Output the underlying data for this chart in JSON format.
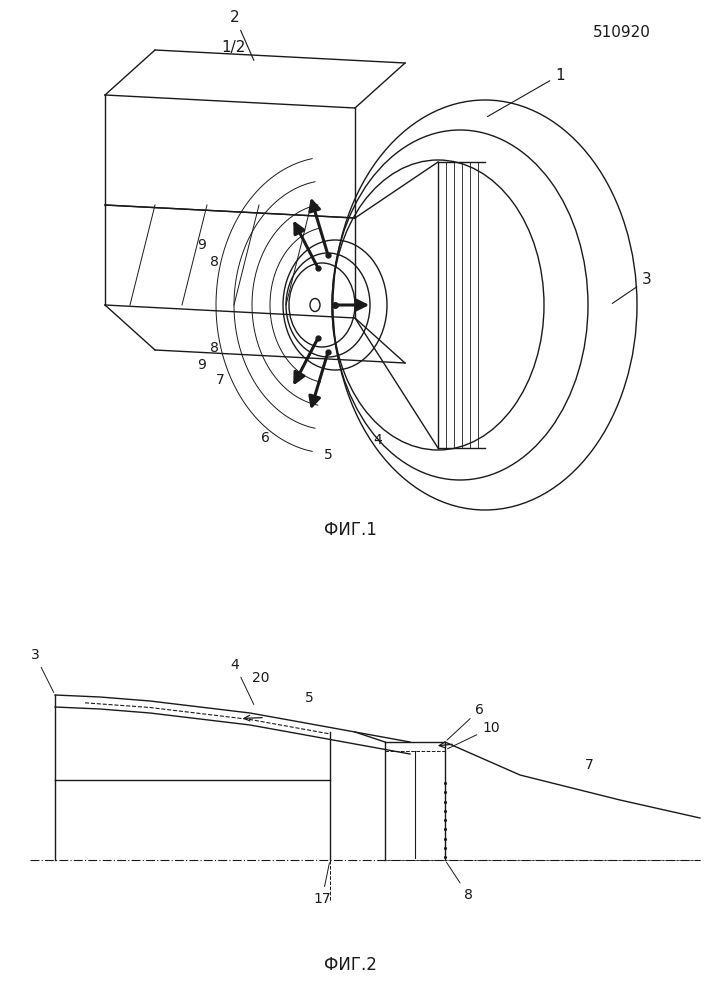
{
  "page_number": "510920",
  "sheet": "1/2",
  "fig1_label": "ФИГ.1",
  "fig2_label": "ФИГ.2",
  "bg_color": "#ffffff",
  "line_color": "#1a1a1a"
}
